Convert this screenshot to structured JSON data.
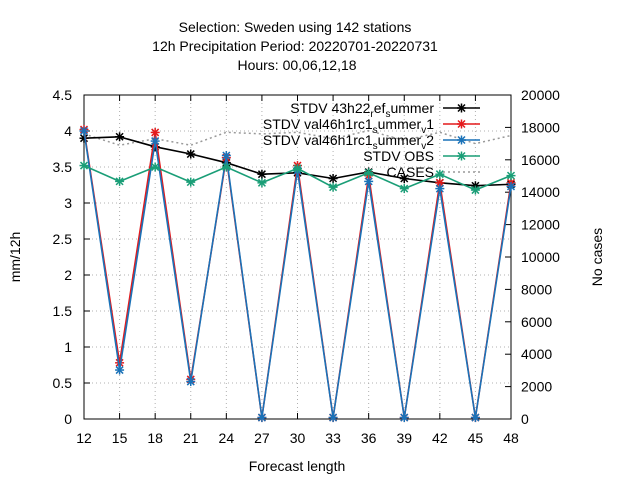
{
  "chart_data": {
    "type": "line",
    "title_lines": [
      "Selection: Sweden using    142 stations",
      "12h Precipitation    Period: 20220701-20220731",
      "Hours:  00,06,12,18"
    ],
    "xlabel": "Forecast length",
    "ylabel": "mm/12h",
    "y2label": "No cases",
    "x": [
      12,
      15,
      18,
      21,
      24,
      27,
      30,
      33,
      36,
      39,
      42,
      45,
      48
    ],
    "ylim": [
      0,
      4.5
    ],
    "y2lim": [
      0,
      20000
    ],
    "yticks": [
      "0",
      "0.5",
      "1",
      "1.5",
      "2",
      "2.5",
      "3",
      "3.5",
      "4",
      "4.5"
    ],
    "y2ticks": [
      "0",
      "2000",
      "4000",
      "6000",
      "8000",
      "10000",
      "12000",
      "14000",
      "16000",
      "18000",
      "20000"
    ],
    "grid": true,
    "legend_position": "top-right",
    "series": [
      {
        "name": "STDV 43h22_ref_summer",
        "legend_parts": [
          [
            "STDV 43h22",
            "n"
          ],
          [
            "r",
            "sub"
          ],
          [
            "ef",
            "n"
          ],
          [
            "s",
            "sub"
          ],
          [
            "ummer",
            "n"
          ]
        ],
        "color": "#000000",
        "axis": "y",
        "values": [
          3.9,
          3.92,
          3.78,
          3.68,
          3.56,
          3.4,
          3.42,
          3.34,
          3.43,
          3.34,
          3.28,
          3.24,
          3.26
        ]
      },
      {
        "name": "STDV val46h1rc1_summer_v1",
        "legend_parts": [
          [
            "STDV val46h1rc1",
            "n"
          ],
          [
            "s",
            "sub"
          ],
          [
            "ummer",
            "n"
          ],
          [
            "v",
            "sub"
          ],
          [
            "1",
            "n"
          ]
        ],
        "color": "#e41a1c",
        "axis": "y",
        "values": [
          4.02,
          0.78,
          3.98,
          0.55,
          3.63,
          0.02,
          3.52,
          0.02,
          3.38,
          0.02,
          3.28,
          0.02,
          3.28
        ]
      },
      {
        "name": "STDV val46h1rc1_summer_v2",
        "legend_parts": [
          [
            "STDV val46h1rc1",
            "n"
          ],
          [
            "s",
            "sub"
          ],
          [
            "ummer",
            "n"
          ],
          [
            "v",
            "sub"
          ],
          [
            "2",
            "n"
          ]
        ],
        "color": "#1a72b8",
        "axis": "y",
        "values": [
          4.0,
          0.68,
          3.86,
          0.52,
          3.66,
          0.02,
          3.45,
          0.02,
          3.3,
          0.02,
          3.2,
          0.02,
          3.23
        ]
      },
      {
        "name": "STDV OBS",
        "legend_parts": [
          [
            "STDV OBS",
            "n"
          ]
        ],
        "color": "#1a9e77",
        "axis": "y",
        "values": [
          3.52,
          3.3,
          3.5,
          3.29,
          3.5,
          3.28,
          3.48,
          3.22,
          3.42,
          3.2,
          3.4,
          3.18,
          3.38
        ]
      },
      {
        "name": "CASES",
        "legend_parts": [
          [
            "CASES",
            "n"
          ]
        ],
        "color": "#999999",
        "axis": "y2",
        "dashed": true,
        "values": [
          17600,
          16900,
          17300,
          16900,
          17700,
          17600,
          17700,
          17300,
          17800,
          17200,
          17700,
          17000,
          17500
        ]
      }
    ]
  }
}
